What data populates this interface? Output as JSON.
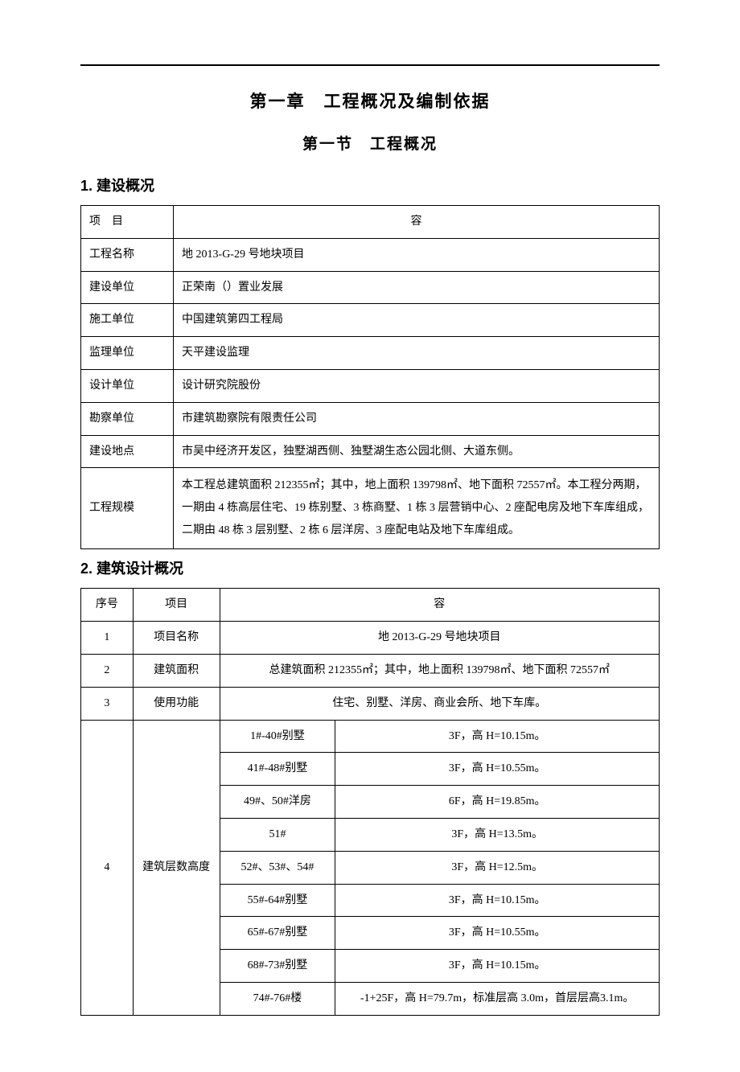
{
  "chapter_title": "第一章　工程概况及编制依据",
  "section_title": "第一节　工程概况",
  "heading1": "1.  建设概况",
  "heading2": "2.  建筑设计概况",
  "table1": {
    "header": {
      "col1": "项　目",
      "col2": "容"
    },
    "rows": [
      {
        "label": "工程名称",
        "value": "地 2013-G-29 号地块项目"
      },
      {
        "label": "建设单位",
        "value": "正荣南（）置业发展"
      },
      {
        "label": "施工单位",
        "value": "中国建筑第四工程局"
      },
      {
        "label": "监理单位",
        "value": "天平建设监理"
      },
      {
        "label": "设计单位",
        "value": "设计研究院股份"
      },
      {
        "label": "勘察单位",
        "value": "市建筑勘察院有限责任公司"
      },
      {
        "label": "建设地点",
        "value": "市吴中经济开发区，独墅湖西侧、独墅湖生态公园北侧、大道东侧。"
      },
      {
        "label": "工程规模",
        "value": "本工程总建筑面积 212355㎡；其中，地上面积 139798㎡、地下面积 72557㎡。本工程分两期，一期由 4 栋高层住宅、19 栋别墅、3 栋商墅、1 栋 3 层营销中心、2 座配电房及地下车库组成，二期由 48 栋 3 层别墅、2 栋 6 层洋房、3 座配电站及地下车库组成。"
      }
    ]
  },
  "table2": {
    "header": {
      "seq": "序号",
      "item": "项目",
      "content": "容"
    },
    "rows": [
      {
        "seq": "1",
        "item": "项目名称",
        "content": "地 2013-G-29 号地块项目"
      },
      {
        "seq": "2",
        "item": "建筑面积",
        "content": "总建筑面积 212355㎡；其中，地上面积 139798㎡、地下面积 72557㎡"
      },
      {
        "seq": "3",
        "item": "使用功能",
        "content": "住宅、别墅、洋房、商业会所、地下车库。"
      }
    ],
    "row4": {
      "seq": "4",
      "item": "建筑层数高度",
      "sub": [
        {
          "a": "1#-40#别墅",
          "b": "3F，高 H=10.15m。"
        },
        {
          "a": "41#-48#别墅",
          "b": "3F，高 H=10.55m。"
        },
        {
          "a": "49#、50#洋房",
          "b": "6F，高 H=19.85m。"
        },
        {
          "a": "51#",
          "b": "3F，高 H=13.5m。"
        },
        {
          "a": "52#、53#、54#",
          "b": "3F，高 H=12.5m。"
        },
        {
          "a": "55#-64#别墅",
          "b": "3F，高 H=10.15m。"
        },
        {
          "a": "65#-67#别墅",
          "b": "3F，高 H=10.55m。"
        },
        {
          "a": "68#-73#别墅",
          "b": "3F，高 H=10.15m。"
        },
        {
          "a": "74#-76#楼",
          "b": "-1+25F，高 H=79.7m，标准层高 3.0m，首层层高3.1m。"
        }
      ]
    }
  }
}
